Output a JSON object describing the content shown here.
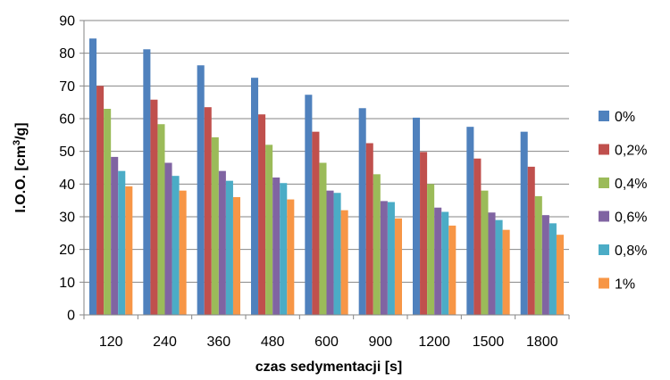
{
  "chart_data": {
    "type": "bar",
    "title": "",
    "xlabel": "czas sedymentacji [s]",
    "ylabel_main": "I.O.O. [cm",
    "ylabel_sup": "3",
    "ylabel_tail": "/g]",
    "ylim": [
      0,
      90
    ],
    "ytick_step": 10,
    "grid": "horizontal",
    "legend_position": "right",
    "categories": [
      "120",
      "240",
      "360",
      "480",
      "600",
      "900",
      "1200",
      "1500",
      "1800"
    ],
    "series": [
      {
        "name": "0%",
        "color": "#4F81BD",
        "values": [
          84.5,
          81.2,
          76.3,
          72.5,
          67.3,
          63.2,
          60.3,
          57.5,
          56.0
        ]
      },
      {
        "name": "0,2%",
        "color": "#C0504D",
        "values": [
          70.0,
          65.8,
          63.5,
          61.3,
          56.0,
          52.5,
          49.8,
          47.8,
          45.3
        ]
      },
      {
        "name": "0,4%",
        "color": "#9BBB59",
        "values": [
          63.0,
          58.3,
          54.3,
          52.0,
          46.5,
          43.0,
          40.0,
          38.0,
          36.3
        ]
      },
      {
        "name": "0,6%",
        "color": "#8064A2",
        "values": [
          48.3,
          46.5,
          44.0,
          42.0,
          38.0,
          34.8,
          32.8,
          31.3,
          30.5
        ]
      },
      {
        "name": "0,8%",
        "color": "#4BACC6",
        "values": [
          44.0,
          42.5,
          41.0,
          40.3,
          37.3,
          34.5,
          31.5,
          29.0,
          28.0
        ]
      },
      {
        "name": "1%",
        "color": "#F79646",
        "values": [
          39.3,
          38.0,
          36.0,
          35.3,
          32.0,
          29.5,
          27.3,
          26.0,
          24.5
        ]
      }
    ]
  }
}
